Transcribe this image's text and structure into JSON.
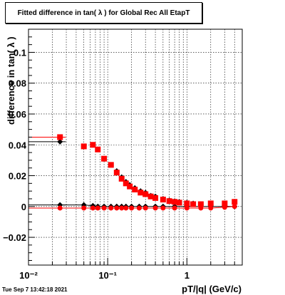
{
  "title": "Fitted difference in tan( λ ) for Global Rec All EtapT",
  "timestamp": "Tue Sep  7 13:42:18 2021",
  "chart_data": {
    "type": "scatter",
    "title": "Fitted difference in tan( λ ) for Global Rec All EtapT",
    "xlabel": "pT/|q| (GeV/c)",
    "ylabel": "difference in tan( λ )",
    "x_scale": "log",
    "xlim": [
      0.01,
      5.0
    ],
    "ylim": [
      -0.038,
      0.115
    ],
    "x_tick_labels": [
      {
        "value": 0.01,
        "label": "10⁻²"
      },
      {
        "value": 0.1,
        "label": "10⁻¹"
      },
      {
        "value": 1,
        "label": "1"
      }
    ],
    "y_tick_labels": [
      {
        "value": -0.02,
        "label": "−0.02"
      },
      {
        "value": 0,
        "label": "0"
      },
      {
        "value": 0.02,
        "label": "0.02"
      },
      {
        "value": 0.04,
        "label": "0.04"
      },
      {
        "value": 0.06,
        "label": "0.06"
      },
      {
        "value": 0.08,
        "label": "0.08"
      },
      {
        "value": 0.1,
        "label": "0.1"
      }
    ],
    "grid": true,
    "series": [
      {
        "color": "#000000",
        "marker": "diamond",
        "x": [
          0.025,
          0.05,
          0.065,
          0.075,
          0.09,
          0.11,
          0.13,
          0.15,
          0.17,
          0.19,
          0.22,
          0.26,
          0.3,
          0.35,
          0.4,
          0.5,
          0.6,
          0.7,
          0.8,
          1.0,
          1.2,
          1.5,
          2.0,
          3.0,
          4.0
        ],
        "y": [
          0.042,
          0.039,
          0.04,
          0.037,
          0.031,
          0.027,
          0.023,
          0.019,
          0.016,
          0.014,
          0.012,
          0.01,
          0.009,
          0.007,
          0.0065,
          0.005,
          0.004,
          0.0035,
          0.003,
          0.0025,
          0.002,
          0.0015,
          0.001,
          0.0005,
          0.0
        ],
        "band_x": [
          0.025,
          0.05,
          0.065,
          0.075,
          0.09,
          0.11,
          0.13,
          0.15,
          0.17,
          0.2,
          0.25,
          0.3,
          0.4,
          0.5,
          0.7,
          1.0,
          1.5,
          2.0,
          3.0,
          4.0
        ],
        "band_y": [
          0.001,
          0.001,
          0.0005,
          0.0,
          0.0,
          0.0,
          0.0,
          0.0,
          0.0,
          0.0,
          0.0,
          0.0,
          0.0,
          0.0,
          0.0,
          0.0,
          0.0,
          0.0,
          0.0,
          0.0
        ]
      },
      {
        "color": "#ff0000",
        "marker": "square",
        "x": [
          0.025,
          0.05,
          0.065,
          0.075,
          0.09,
          0.11,
          0.13,
          0.15,
          0.17,
          0.19,
          0.22,
          0.26,
          0.3,
          0.35,
          0.4,
          0.5,
          0.6,
          0.7,
          0.8,
          1.0,
          1.2,
          1.5,
          2.0,
          3.0,
          4.0
        ],
        "y": [
          0.045,
          0.039,
          0.04,
          0.037,
          0.031,
          0.027,
          0.022,
          0.018,
          0.015,
          0.013,
          0.011,
          0.009,
          0.008,
          0.0065,
          0.0055,
          0.0045,
          0.0035,
          0.003,
          0.0025,
          0.002,
          0.0015,
          0.0015,
          0.002,
          0.002,
          0.003
        ],
        "band_x": [
          0.025,
          0.05,
          0.065,
          0.075,
          0.09,
          0.11,
          0.13,
          0.15,
          0.17,
          0.2,
          0.25,
          0.3,
          0.4,
          0.5,
          0.7,
          1.0,
          1.5,
          2.0,
          3.0,
          4.0
        ],
        "band_y": [
          -0.001,
          -0.001,
          -0.001,
          -0.001,
          -0.001,
          -0.001,
          -0.001,
          -0.001,
          -0.001,
          -0.001,
          -0.001,
          -0.001,
          -0.001,
          -0.001,
          -0.001,
          -0.001,
          -0.001,
          -0.001,
          -0.0005,
          0.0
        ]
      }
    ]
  }
}
